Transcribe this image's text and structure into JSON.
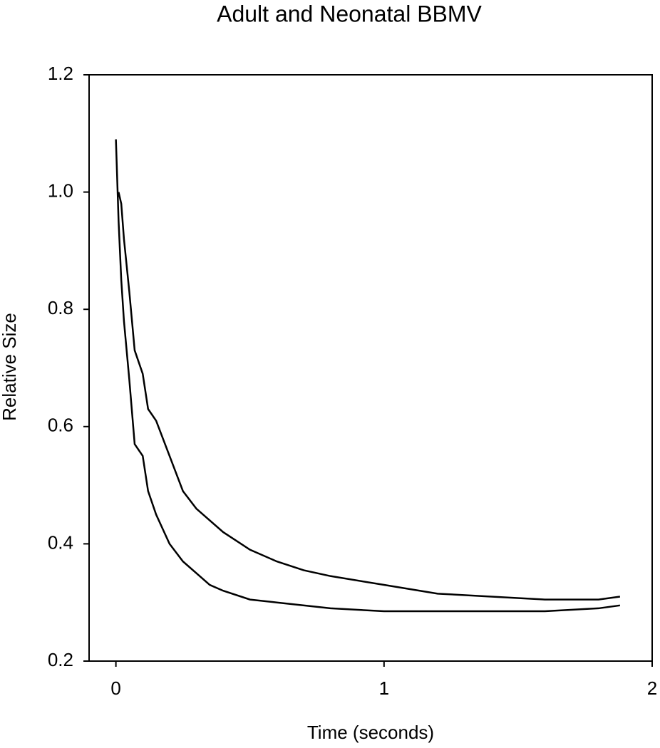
{
  "chart_data": {
    "type": "line",
    "title": "Adult and Neonatal BBMV",
    "x_label": "Time (seconds)",
    "y_label": "Relative Size",
    "xlim": [
      -0.1,
      2
    ],
    "xticks": [
      0,
      1,
      2
    ],
    "ylim": [
      0.2,
      1.2
    ],
    "yticks": [
      0.2,
      0.4,
      0.6,
      0.8,
      {
        "value": 1,
        "label": "1.0"
      },
      1.2
    ],
    "series": [
      {
        "color": "#000000",
        "x": [
          0,
          0.01,
          0.02,
          0.03,
          0.05,
          0.07,
          0.1,
          0.12,
          0.15,
          0.2,
          0.25,
          0.3,
          0.35,
          0.4,
          0.5,
          0.6,
          0.8,
          1.0,
          1.2,
          1.4,
          1.6,
          1.8,
          1.88
        ],
        "values": [
          1.09,
          0.95,
          0.85,
          0.78,
          0.68,
          0.57,
          0.55,
          0.49,
          0.45,
          0.4,
          0.37,
          0.35,
          0.33,
          0.32,
          0.305,
          0.3,
          0.29,
          0.285,
          0.285,
          0.285,
          0.285,
          0.29,
          0.295
        ]
      },
      {
        "color": "#000000",
        "x": [
          0.01,
          0.02,
          0.03,
          0.05,
          0.07,
          0.1,
          0.12,
          0.15,
          0.2,
          0.25,
          0.3,
          0.4,
          0.5,
          0.6,
          0.7,
          0.8,
          1.0,
          1.2,
          1.4,
          1.6,
          1.8,
          1.88
        ],
        "values": [
          1.0,
          0.98,
          0.92,
          0.83,
          0.73,
          0.69,
          0.63,
          0.61,
          0.55,
          0.49,
          0.46,
          0.42,
          0.39,
          0.37,
          0.355,
          0.345,
          0.33,
          0.315,
          0.31,
          0.305,
          0.305,
          0.31
        ]
      }
    ]
  }
}
